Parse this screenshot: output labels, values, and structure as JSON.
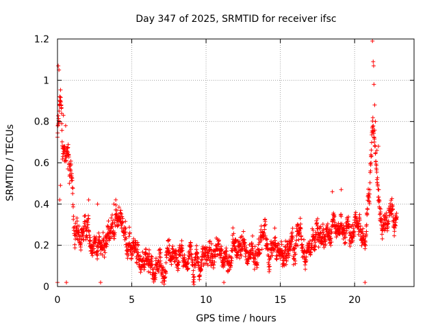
{
  "chart_data": {
    "type": "scatter",
    "title": "Day 347 of 2025, SRMTID for receiver ifsc",
    "xlabel": "GPS time / hours",
    "ylabel": "SRMTID / TECUs",
    "xlim": [
      0,
      24
    ],
    "ylim": [
      0,
      1.2
    ],
    "xticks": [
      0,
      5,
      10,
      15,
      20
    ],
    "yticks": [
      0,
      0.2,
      0.4,
      0.6,
      0.8,
      1,
      1.2
    ],
    "xtick_labels": [
      "0",
      "5",
      "10",
      "15",
      "20"
    ],
    "ytick_labels": [
      "0",
      "0.2",
      "0.4",
      "0.6",
      "0.8",
      "1",
      "1.2"
    ],
    "grid": true,
    "marker": "plus",
    "color": "#ff0000",
    "series": [
      {
        "name": "SRMTID",
        "profile_x": [
          0.0,
          0.1,
          0.2,
          0.35,
          0.5,
          0.7,
          0.9,
          1.1,
          1.4,
          2.0,
          3.0,
          4.0,
          4.5,
          5.0,
          5.5,
          6.0,
          6.5,
          7.0,
          7.5,
          8.0,
          9.0,
          10.0,
          11.0,
          12.0,
          13.0,
          14.0,
          15.0,
          16.0,
          17.0,
          18.0,
          18.5,
          19.0,
          20.0,
          20.5,
          20.8,
          21.0,
          21.2,
          21.4,
          21.6,
          21.8,
          22.0,
          22.5,
          22.8
        ],
        "profile_y": [
          0.7,
          0.85,
          0.95,
          0.65,
          0.7,
          0.65,
          0.55,
          0.3,
          0.22,
          0.25,
          0.2,
          0.3,
          0.25,
          0.18,
          0.15,
          0.12,
          0.1,
          0.07,
          0.09,
          0.12,
          0.13,
          0.15,
          0.16,
          0.18,
          0.19,
          0.2,
          0.18,
          0.2,
          0.22,
          0.25,
          0.28,
          0.28,
          0.3,
          0.25,
          0.3,
          0.45,
          0.75,
          0.65,
          0.45,
          0.3,
          0.3,
          0.32,
          0.35
        ],
        "spread": 0.05,
        "x_step": 0.012,
        "x_end": 22.85,
        "points": [
          [
            0.05,
            1.07
          ],
          [
            0.1,
            1.05
          ],
          [
            0.15,
            0.92
          ],
          [
            0.25,
            0.88
          ],
          [
            0.4,
            0.83
          ],
          [
            0.55,
            0.78
          ],
          [
            0.15,
            0.42
          ],
          [
            0.2,
            0.49
          ],
          [
            0.7,
            0.57
          ],
          [
            0.8,
            0.5
          ],
          [
            21.2,
            1.19
          ],
          [
            21.25,
            1.09
          ],
          [
            21.28,
            1.07
          ],
          [
            21.3,
            0.98
          ],
          [
            21.35,
            0.88
          ],
          [
            21.4,
            0.8
          ],
          [
            21.1,
            0.6
          ],
          [
            21.5,
            0.66
          ],
          [
            21.6,
            0.68
          ],
          [
            3.8,
            0.4
          ],
          [
            4.0,
            0.37
          ],
          [
            18.5,
            0.46
          ],
          [
            19.1,
            0.47
          ],
          [
            2.1,
            0.42
          ],
          [
            2.7,
            0.4
          ],
          [
            0.0,
            0.02
          ],
          [
            0.6,
            0.02
          ],
          [
            2.9,
            0.02
          ],
          [
            11.2,
            0.02
          ],
          [
            20.7,
            0.02
          ]
        ]
      }
    ]
  }
}
